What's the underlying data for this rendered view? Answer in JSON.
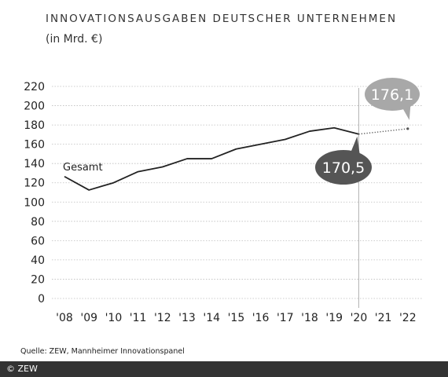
{
  "header": {
    "title": "INNOVATIONSAUSGABEN DEUTSCHER UNTERNEHMEN",
    "subtitle": "(in Mrd. €)"
  },
  "source": "Quelle: ZEW, Mannheimer Innovationspanel",
  "copyright": "© ZEW",
  "colors": {
    "line": "#222222",
    "grid": "#bdbdbd",
    "callout_actual": "#555555",
    "callout_planned": "#a8a8a8",
    "footer_bg": "#333333"
  },
  "chart_data": {
    "type": "line",
    "title": "INNOVATIONSAUSGABEN DEUTSCHER UNTERNEHMEN",
    "subtitle": "(in Mrd. €)",
    "categories": [
      "'08",
      "'09",
      "'10",
      "'11",
      "'12",
      "'13",
      "'14",
      "'15",
      "'16",
      "'17",
      "'18",
      "'19",
      "'20",
      "'21",
      "'22"
    ],
    "ylim": [
      0,
      220
    ],
    "yticks": [
      0,
      20,
      40,
      60,
      80,
      100,
      120,
      140,
      160,
      180,
      200,
      220
    ],
    "grid": true,
    "series": [
      {
        "name": "Gesamt",
        "style": "solid",
        "x": [
          "'08",
          "'09",
          "'10",
          "'11",
          "'12",
          "'13",
          "'14",
          "'15",
          "'16",
          "'17",
          "'18",
          "'19",
          "'20"
        ],
        "values": [
          126.5,
          112.5,
          120,
          131.5,
          136.5,
          145,
          145,
          155,
          160,
          165,
          173.5,
          177,
          170.5
        ]
      },
      {
        "style": "dotted",
        "x": [
          "'20",
          "'22"
        ],
        "values": [
          170.5,
          176.1
        ]
      }
    ],
    "annotations": [
      {
        "text": "170,5",
        "x": "'20",
        "y": 170.5
      },
      {
        "text": "176,1",
        "x": "'22",
        "y": 176.1
      }
    ]
  }
}
